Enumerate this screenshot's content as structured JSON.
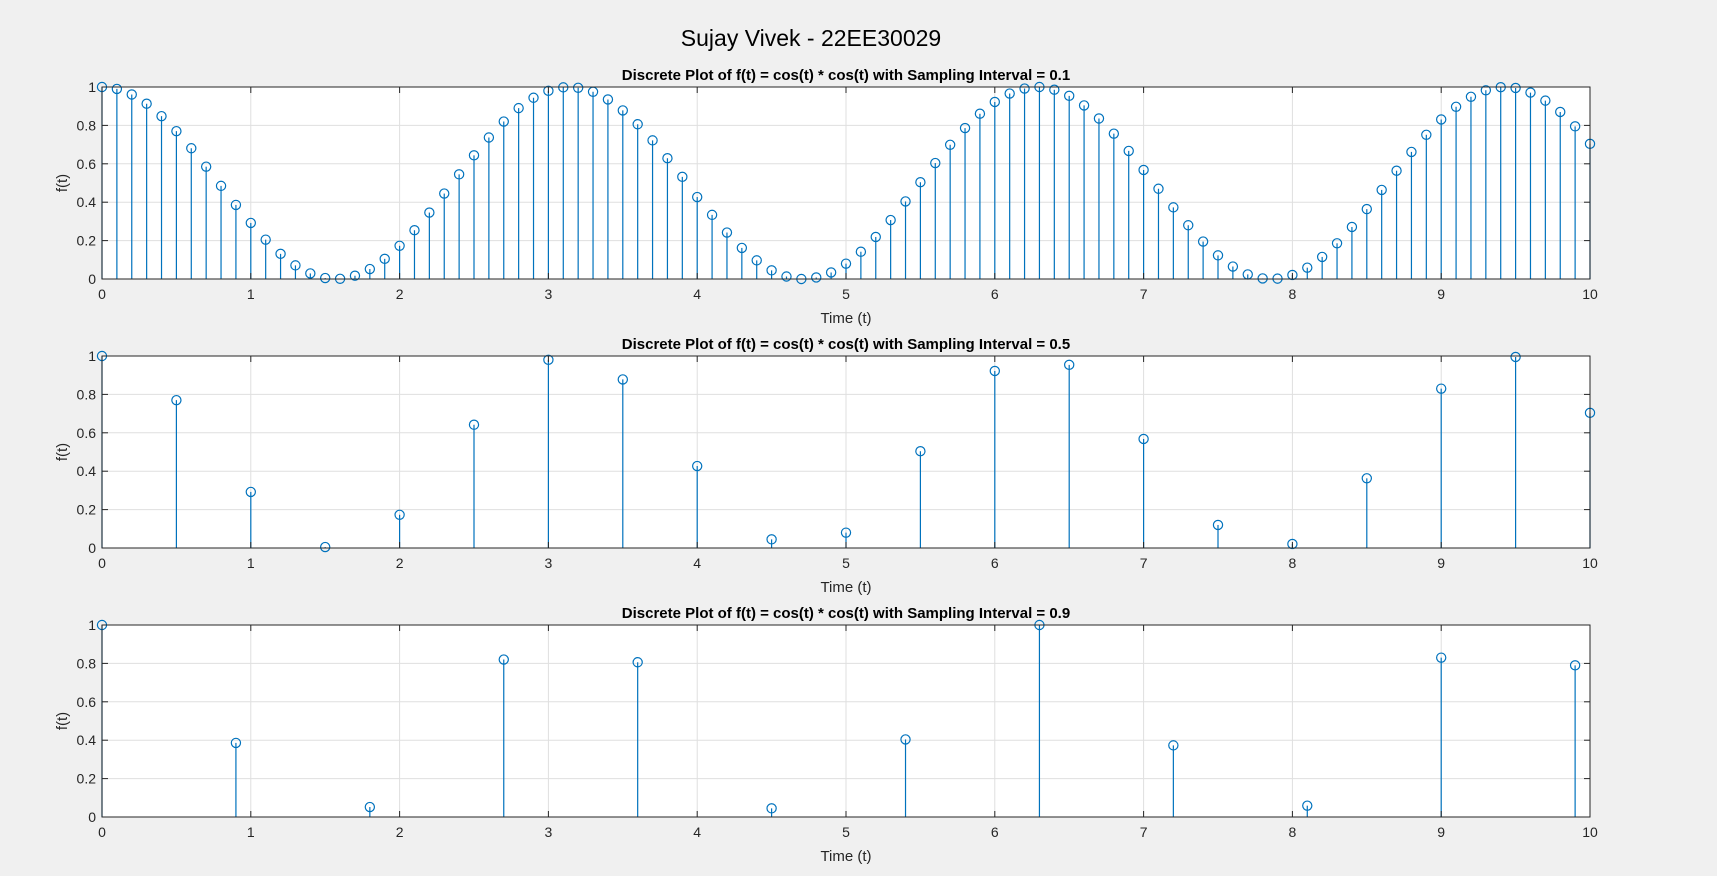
{
  "figure_title": "Sujay Vivek - 22EE30029",
  "colors": {
    "stem": "#0072BD",
    "grid": "#dfdfdf",
    "axes": "#262626",
    "background": "#f0f0f0",
    "plot_bg": "#ffffff"
  },
  "chart_data": [
    {
      "type": "stem",
      "title": "Discrete Plot of f(t) = cos(t) * cos(t) with Sampling Interval = 0.1",
      "xlabel": "Time (t)",
      "ylabel": "f(t)",
      "xlim": [
        0,
        10
      ],
      "ylim": [
        0,
        1
      ],
      "xticks": [
        "0",
        "1",
        "2",
        "3",
        "4",
        "5",
        "6",
        "7",
        "8",
        "9",
        "10"
      ],
      "yticks": [
        "0",
        "0.2",
        "0.4",
        "0.6",
        "0.8",
        "1"
      ],
      "grid": true,
      "x": [
        0,
        0.1,
        0.2,
        0.3,
        0.4,
        0.5,
        0.6,
        0.7,
        0.8,
        0.9,
        1,
        1.1,
        1.2,
        1.3,
        1.4,
        1.5,
        1.6,
        1.7,
        1.8,
        1.9,
        2,
        2.1,
        2.2,
        2.3,
        2.4,
        2.5,
        2.6,
        2.7,
        2.8,
        2.9,
        3,
        3.1,
        3.2,
        3.3,
        3.4,
        3.5,
        3.6,
        3.7,
        3.8,
        3.9,
        4,
        4.1,
        4.2,
        4.3,
        4.4,
        4.5,
        4.6,
        4.7,
        4.8,
        4.9,
        5,
        5.1,
        5.2,
        5.3,
        5.4,
        5.5,
        5.6,
        5.7,
        5.8,
        5.9,
        6,
        6.1,
        6.2,
        6.3,
        6.4,
        6.5,
        6.6,
        6.7,
        6.8,
        6.9,
        7,
        7.1,
        7.2,
        7.3,
        7.4,
        7.5,
        7.6,
        7.7,
        7.8,
        7.9,
        8,
        8.1,
        8.2,
        8.3,
        8.4,
        8.5,
        8.6,
        8.7,
        8.8,
        8.9,
        9,
        9.1,
        9.2,
        9.3,
        9.4,
        9.5,
        9.6,
        9.7,
        9.8,
        9.9,
        10
      ],
      "y": [
        1,
        0.99,
        0.961,
        0.913,
        0.848,
        0.77,
        0.681,
        0.585,
        0.485,
        0.386,
        0.292,
        0.205,
        0.131,
        0.071,
        0.029,
        0.005,
        0.001,
        0.017,
        0.052,
        0.105,
        0.173,
        0.254,
        0.346,
        0.445,
        0.545,
        0.644,
        0.737,
        0.82,
        0.89,
        0.944,
        0.98,
        0.998,
        0.996,
        0.975,
        0.935,
        0.878,
        0.806,
        0.722,
        0.629,
        0.532,
        0.427,
        0.334,
        0.242,
        0.162,
        0.097,
        0.045,
        0.013,
        0.0,
        0.008,
        0.034,
        0.08,
        0.142,
        0.219,
        0.307,
        0.404,
        0.504,
        0.604,
        0.699,
        0.786,
        0.861,
        0.922,
        0.966,
        0.992,
        1,
        0.986,
        0.954,
        0.904,
        0.836,
        0.757,
        0.667,
        0.568,
        0.47,
        0.373,
        0.28,
        0.195,
        0.123,
        0.065,
        0.024,
        0.003,
        0.002,
        0.021,
        0.059,
        0.115,
        0.186,
        0.271,
        0.364,
        0.464,
        0.564,
        0.662,
        0.751,
        0.831,
        0.897,
        0.949,
        0.983,
        0.999,
        0.995,
        0.971,
        0.929,
        0.87,
        0.795,
        0.704
      ]
    },
    {
      "type": "stem",
      "title": "Discrete Plot of f(t) = cos(t) * cos(t) with Sampling Interval = 0.5",
      "xlabel": "Time (t)",
      "ylabel": "f(t)",
      "xlim": [
        0,
        10
      ],
      "ylim": [
        0,
        1
      ],
      "xticks": [
        "0",
        "1",
        "2",
        "3",
        "4",
        "5",
        "6",
        "7",
        "8",
        "9",
        "10"
      ],
      "yticks": [
        "0",
        "0.2",
        "0.4",
        "0.6",
        "0.8",
        "1"
      ],
      "grid": true,
      "x": [
        0,
        0.5,
        1,
        1.5,
        2,
        2.5,
        3,
        3.5,
        4,
        4.5,
        5,
        5.5,
        6,
        6.5,
        7,
        7.5,
        8,
        8.5,
        9,
        9.5,
        10
      ],
      "y": [
        1,
        0.77,
        0.292,
        0.005,
        0.173,
        0.642,
        0.98,
        0.878,
        0.427,
        0.045,
        0.08,
        0.504,
        0.922,
        0.954,
        0.568,
        0.12,
        0.021,
        0.363,
        0.83,
        0.995,
        0.704
      ]
    },
    {
      "type": "stem",
      "title": "Discrete Plot of f(t) = cos(t) * cos(t) with Sampling Interval = 0.9",
      "xlabel": "Time (t)",
      "ylabel": "f(t)",
      "xlim": [
        0,
        10
      ],
      "ylim": [
        0,
        1
      ],
      "xticks": [
        "0",
        "1",
        "2",
        "3",
        "4",
        "5",
        "6",
        "7",
        "8",
        "9",
        "10"
      ],
      "yticks": [
        "0",
        "0.2",
        "0.4",
        "0.6",
        "0.8",
        "1"
      ],
      "grid": true,
      "x": [
        0,
        0.9,
        1.8,
        2.7,
        3.6,
        4.5,
        5.4,
        6.3,
        7.2,
        8.1,
        9,
        9.9
      ],
      "y": [
        1,
        0.386,
        0.052,
        0.82,
        0.806,
        0.045,
        0.404,
        1,
        0.373,
        0.059,
        0.83,
        0.79
      ]
    }
  ]
}
